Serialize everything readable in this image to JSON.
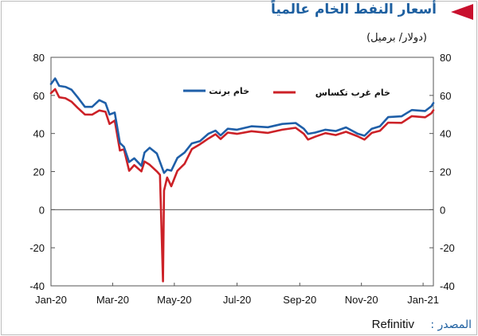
{
  "title": "أسعار النفط الخام عالمياً",
  "subtitle": "(دولار/ برميل)",
  "source": {
    "label": "المصدر :",
    "name": "Refinitiv"
  },
  "colors": {
    "brent": "#1f5fa8",
    "wti": "#cc2127",
    "accent": "#c8102e",
    "title": "#1d5fa0"
  },
  "chart_data": {
    "type": "line",
    "title": "أسعار النفط الخام عالمياً",
    "ylabel": "(دولار/ برميل)",
    "ylim": [
      -40,
      80
    ],
    "yticks": [
      80,
      60,
      40,
      20,
      0,
      -20,
      -40
    ],
    "xlim": [
      "2020-01-02",
      "2021-01-08"
    ],
    "xticks": [
      {
        "date": "2020-01-02",
        "label": "Jan-20"
      },
      {
        "date": "2020-03-02",
        "label": "Mar-20"
      },
      {
        "date": "2020-05-01",
        "label": "May-20"
      },
      {
        "date": "2020-07-01",
        "label": "Jul-20"
      },
      {
        "date": "2020-08-31",
        "label": "Sep-20"
      },
      {
        "date": "2020-10-30",
        "label": "Nov-20"
      },
      {
        "date": "2020-12-29",
        "label": "Jan-21"
      }
    ],
    "grid": false,
    "legend": "top-right",
    "series": [
      {
        "name": "خام برنت",
        "color": "#1f5fa8",
        "points": [
          [
            "2020-01-02",
            66
          ],
          [
            "2020-01-06",
            68.9
          ],
          [
            "2020-01-10",
            65
          ],
          [
            "2020-01-16",
            64.5
          ],
          [
            "2020-01-22",
            63
          ],
          [
            "2020-01-28",
            59
          ],
          [
            "2020-02-04",
            54
          ],
          [
            "2020-02-11",
            54
          ],
          [
            "2020-02-18",
            57.5
          ],
          [
            "2020-02-24",
            56
          ],
          [
            "2020-02-28",
            50
          ],
          [
            "2020-03-04",
            51
          ],
          [
            "2020-03-09",
            35
          ],
          [
            "2020-03-13",
            33
          ],
          [
            "2020-03-18",
            25
          ],
          [
            "2020-03-23",
            27
          ],
          [
            "2020-03-30",
            23
          ],
          [
            "2020-04-02",
            30
          ],
          [
            "2020-04-07",
            32.5
          ],
          [
            "2020-04-14",
            29.5
          ],
          [
            "2020-04-21",
            19.3
          ],
          [
            "2020-04-24",
            21
          ],
          [
            "2020-04-28",
            20.5
          ],
          [
            "2020-05-04",
            27.2
          ],
          [
            "2020-05-11",
            30
          ],
          [
            "2020-05-18",
            34.8
          ],
          [
            "2020-05-26",
            36
          ],
          [
            "2020-06-03",
            39.8
          ],
          [
            "2020-06-10",
            41.5
          ],
          [
            "2020-06-15",
            39
          ],
          [
            "2020-06-22",
            42.5
          ],
          [
            "2020-07-01",
            42
          ],
          [
            "2020-07-15",
            43.8
          ],
          [
            "2020-07-31",
            43.3
          ],
          [
            "2020-08-14",
            45
          ],
          [
            "2020-08-27",
            45.5
          ],
          [
            "2020-09-04",
            42.5
          ],
          [
            "2020-09-08",
            39.8
          ],
          [
            "2020-09-15",
            40.5
          ],
          [
            "2020-09-25",
            42
          ],
          [
            "2020-10-05",
            41.3
          ],
          [
            "2020-10-15",
            43.2
          ],
          [
            "2020-10-26",
            40
          ],
          [
            "2020-11-02",
            38.8
          ],
          [
            "2020-11-09",
            42.5
          ],
          [
            "2020-11-17",
            43.8
          ],
          [
            "2020-11-25",
            48.6
          ],
          [
            "2020-12-08",
            49
          ],
          [
            "2020-12-18",
            52.3
          ],
          [
            "2020-12-31",
            51.8
          ],
          [
            "2021-01-06",
            54.3
          ],
          [
            "2021-01-08",
            56
          ]
        ]
      },
      {
        "name": "خام غرب تكساس",
        "color": "#cc2127",
        "points": [
          [
            "2020-01-02",
            61.2
          ],
          [
            "2020-01-06",
            63.3
          ],
          [
            "2020-01-10",
            59
          ],
          [
            "2020-01-16",
            58.5
          ],
          [
            "2020-01-22",
            56.7
          ],
          [
            "2020-01-28",
            53.5
          ],
          [
            "2020-02-04",
            50
          ],
          [
            "2020-02-11",
            49.9
          ],
          [
            "2020-02-18",
            52.1
          ],
          [
            "2020-02-24",
            51.4
          ],
          [
            "2020-02-28",
            45
          ],
          [
            "2020-03-04",
            46.8
          ],
          [
            "2020-03-09",
            31.1
          ],
          [
            "2020-03-13",
            31.7
          ],
          [
            "2020-03-18",
            20.4
          ],
          [
            "2020-03-23",
            23.4
          ],
          [
            "2020-03-30",
            20.1
          ],
          [
            "2020-04-02",
            25.3
          ],
          [
            "2020-04-07",
            23.6
          ],
          [
            "2020-04-14",
            20.1
          ],
          [
            "2020-04-17",
            18.3
          ],
          [
            "2020-04-20",
            -37.6
          ],
          [
            "2020-04-21",
            10
          ],
          [
            "2020-04-24",
            16.9
          ],
          [
            "2020-04-28",
            12.3
          ],
          [
            "2020-05-04",
            20.4
          ],
          [
            "2020-05-11",
            24.1
          ],
          [
            "2020-05-18",
            31.8
          ],
          [
            "2020-05-26",
            34.4
          ],
          [
            "2020-06-03",
            37.3
          ],
          [
            "2020-06-10",
            39.6
          ],
          [
            "2020-06-15",
            37.1
          ],
          [
            "2020-06-22",
            40.5
          ],
          [
            "2020-07-01",
            39.8
          ],
          [
            "2020-07-15",
            41.2
          ],
          [
            "2020-07-31",
            40.3
          ],
          [
            "2020-08-14",
            42
          ],
          [
            "2020-08-27",
            43
          ],
          [
            "2020-09-04",
            39.8
          ],
          [
            "2020-09-08",
            36.8
          ],
          [
            "2020-09-15",
            38.3
          ],
          [
            "2020-09-25",
            40.2
          ],
          [
            "2020-10-05",
            39.2
          ],
          [
            "2020-10-15",
            40.9
          ],
          [
            "2020-10-26",
            38.6
          ],
          [
            "2020-11-02",
            36.8
          ],
          [
            "2020-11-09",
            40.3
          ],
          [
            "2020-11-17",
            41.4
          ],
          [
            "2020-11-25",
            45.7
          ],
          [
            "2020-12-08",
            45.6
          ],
          [
            "2020-12-18",
            49.1
          ],
          [
            "2020-12-31",
            48.5
          ],
          [
            "2021-01-06",
            50.6
          ],
          [
            "2021-01-08",
            52.2
          ]
        ]
      }
    ]
  }
}
